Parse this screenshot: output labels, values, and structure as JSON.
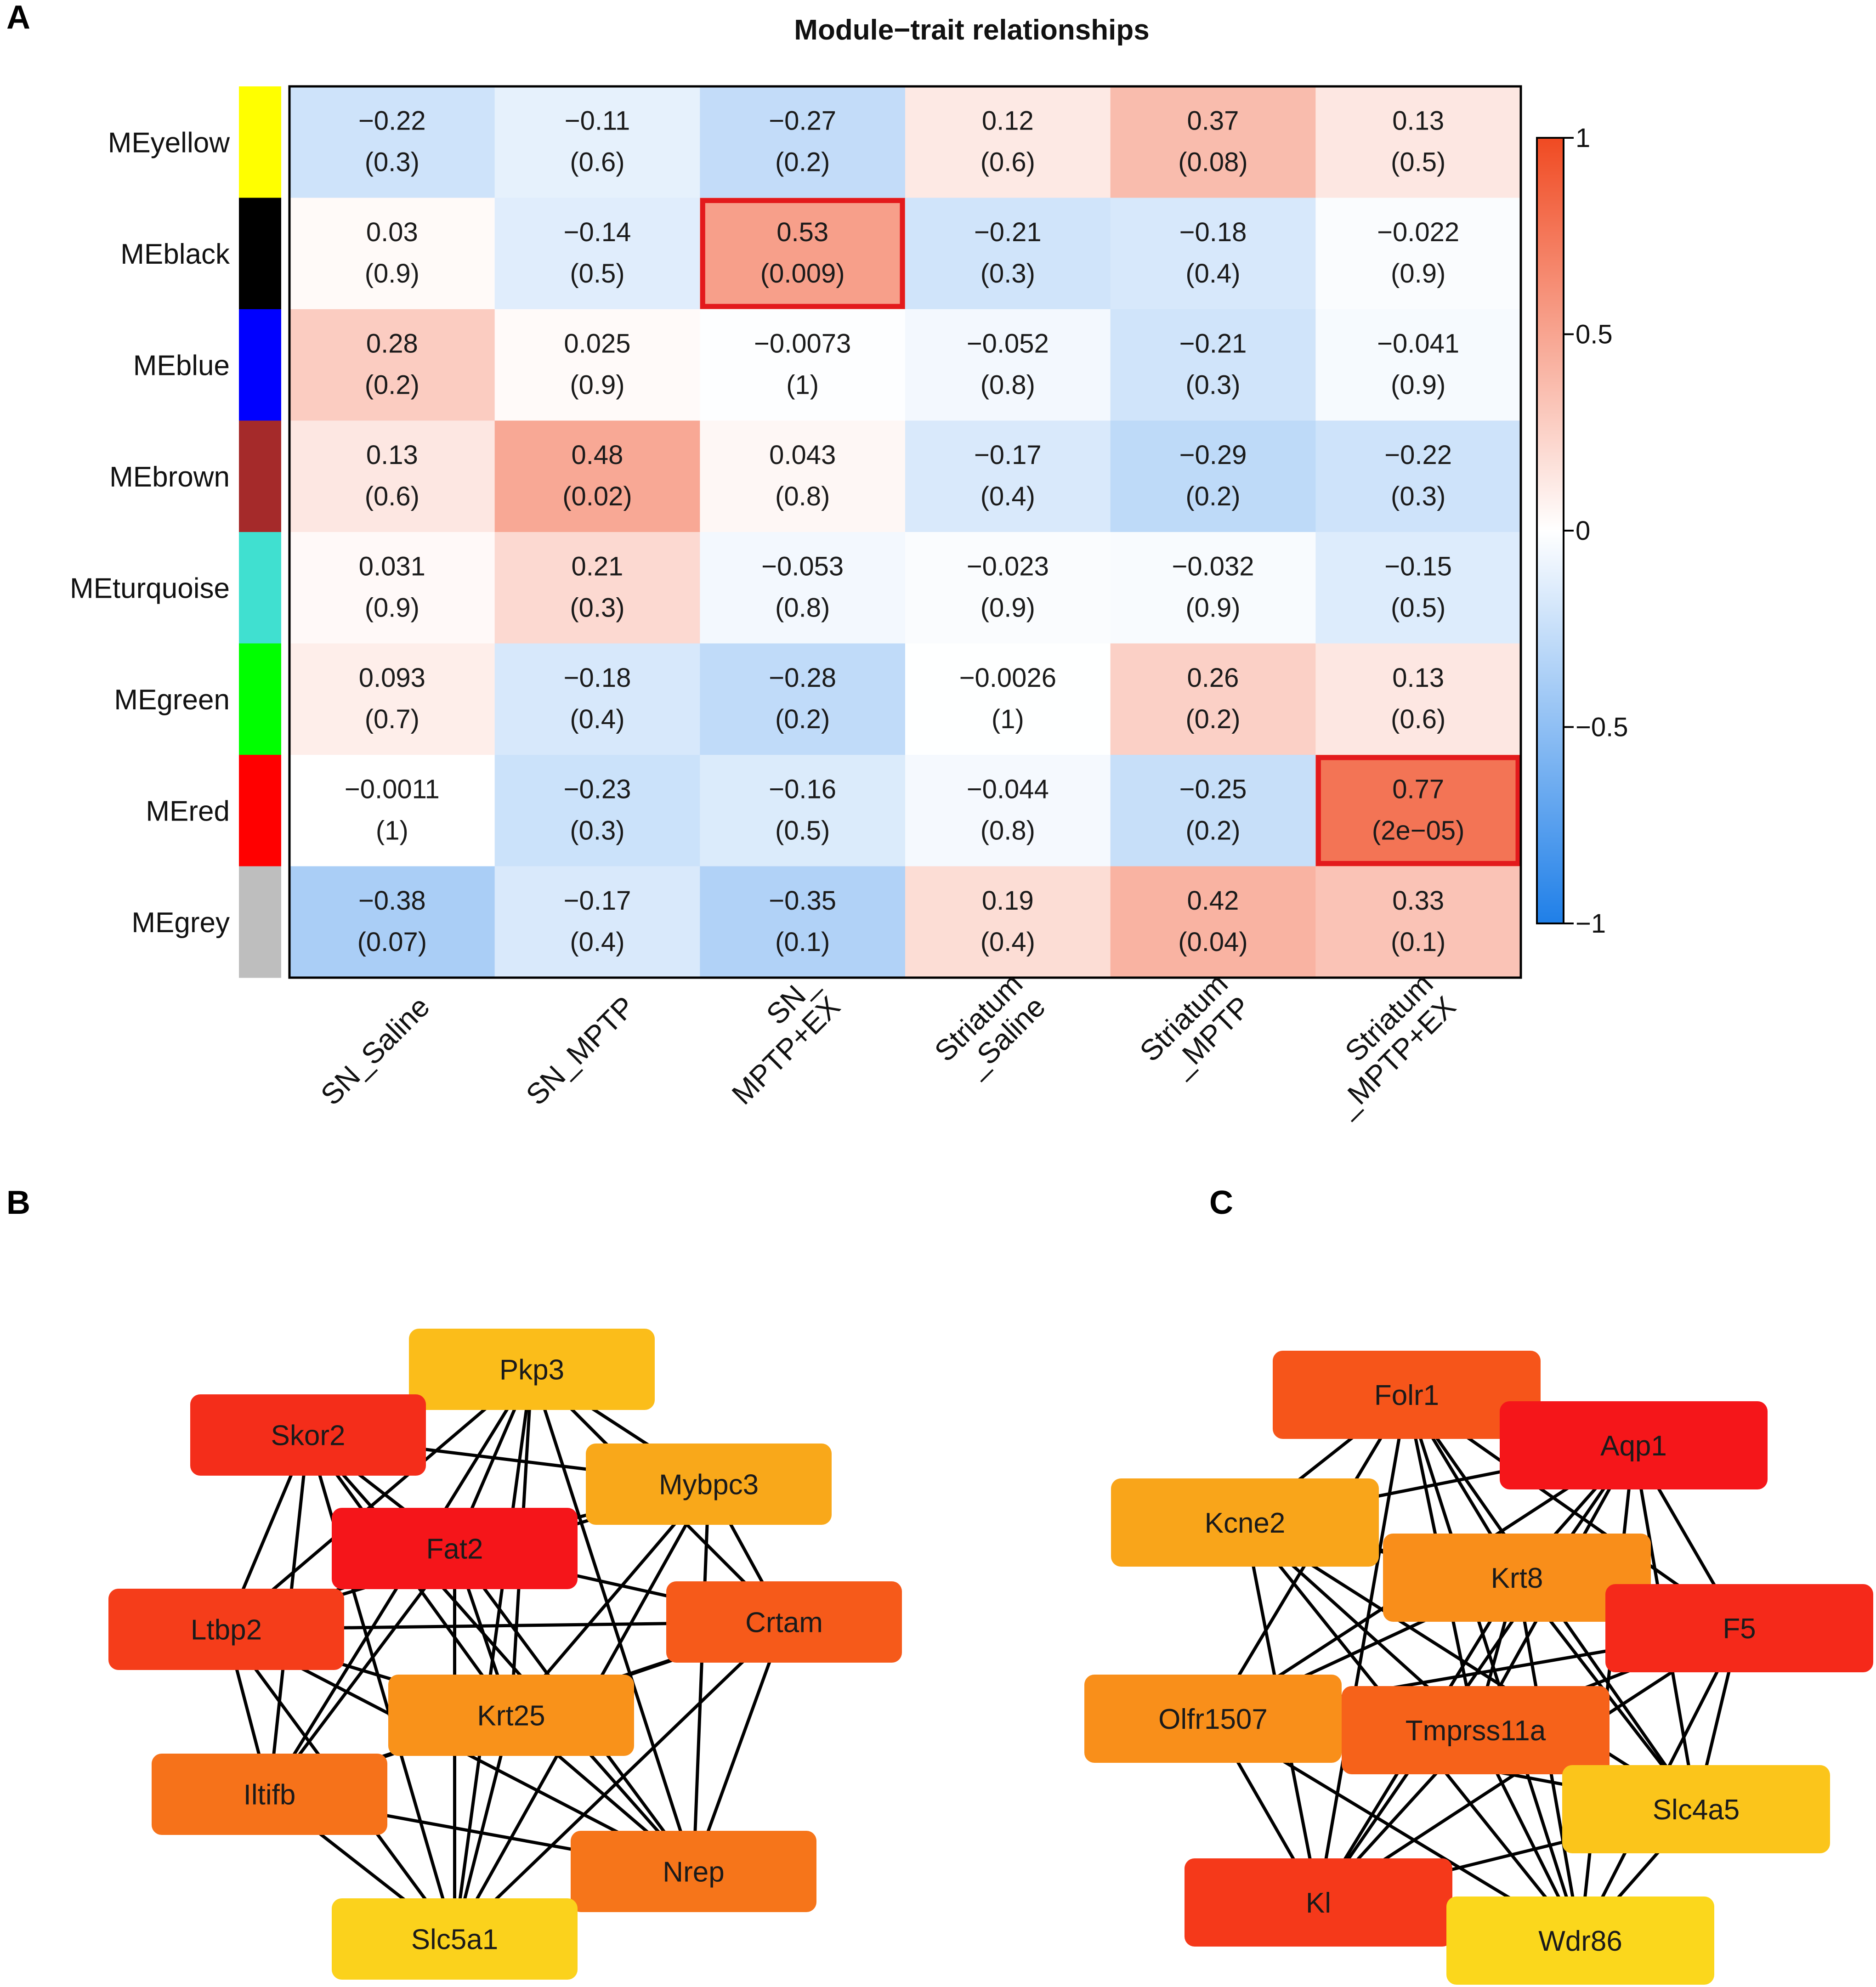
{
  "panels": {
    "a": "A",
    "b": "B",
    "c": "C"
  },
  "chart_data": [
    {
      "type": "heatmap",
      "title": "Module−trait relationships",
      "rows": [
        "MEyellow",
        "MEblack",
        "MEblue",
        "MEbrown",
        "MEturquoise",
        "MEgreen",
        "MEred",
        "MEgrey"
      ],
      "row_colors": [
        "#ffff00",
        "#000000",
        "#0000ff",
        "#a52a2a",
        "#40e0d0",
        "#00ff00",
        "#ff0000",
        "#bebebe"
      ],
      "columns": [
        [
          "SN_Saline"
        ],
        [
          "SN_MPTP"
        ],
        [
          "SN_",
          "MPTP+EX"
        ],
        [
          "Striatum",
          "_Saline"
        ],
        [
          "Striatum",
          "_MPTP"
        ],
        [
          "Striatum",
          "_MPTP+EX"
        ]
      ],
      "values": [
        [
          -0.22,
          -0.11,
          -0.27,
          0.12,
          0.37,
          0.13
        ],
        [
          0.03,
          -0.14,
          0.53,
          -0.21,
          -0.18,
          -0.022
        ],
        [
          0.28,
          0.025,
          -0.0073,
          -0.052,
          -0.21,
          -0.041
        ],
        [
          0.13,
          0.48,
          0.043,
          -0.17,
          -0.29,
          -0.22
        ],
        [
          0.031,
          0.21,
          -0.053,
          -0.023,
          -0.032,
          -0.15
        ],
        [
          0.093,
          -0.18,
          -0.28,
          -0.0026,
          0.26,
          0.13
        ],
        [
          -0.0011,
          -0.23,
          -0.16,
          -0.044,
          -0.25,
          0.77
        ],
        [
          -0.38,
          -0.17,
          -0.35,
          0.19,
          0.42,
          0.33
        ]
      ],
      "value_labels": [
        [
          "−0.22",
          "−0.11",
          "−0.27",
          "0.12",
          "0.37",
          "0.13"
        ],
        [
          "0.03",
          "−0.14",
          "0.53",
          "−0.21",
          "−0.18",
          "−0.022"
        ],
        [
          "0.28",
          "0.025",
          "−0.0073",
          "−0.052",
          "−0.21",
          "−0.041"
        ],
        [
          "0.13",
          "0.48",
          "0.043",
          "−0.17",
          "−0.29",
          "−0.22"
        ],
        [
          "0.031",
          "0.21",
          "−0.053",
          "−0.023",
          "−0.032",
          "−0.15"
        ],
        [
          "0.093",
          "−0.18",
          "−0.28",
          "−0.0026",
          "0.26",
          "0.13"
        ],
        [
          "−0.0011",
          "−0.23",
          "−0.16",
          "−0.044",
          "−0.25",
          "0.77"
        ],
        [
          "−0.38",
          "−0.17",
          "−0.35",
          "0.19",
          "0.42",
          "0.33"
        ]
      ],
      "pvalues": [
        [
          "(0.3)",
          "(0.6)",
          "(0.2)",
          "(0.6)",
          "(0.08)",
          "(0.5)"
        ],
        [
          "(0.9)",
          "(0.5)",
          "(0.009)",
          "(0.3)",
          "(0.4)",
          "(0.9)"
        ],
        [
          "(0.2)",
          "(0.9)",
          "(1)",
          "(0.8)",
          "(0.3)",
          "(0.9)"
        ],
        [
          "(0.6)",
          "(0.02)",
          "(0.8)",
          "(0.4)",
          "(0.2)",
          "(0.3)"
        ],
        [
          "(0.9)",
          "(0.3)",
          "(0.8)",
          "(0.9)",
          "(0.9)",
          "(0.5)"
        ],
        [
          "(0.7)",
          "(0.4)",
          "(0.2)",
          "(1)",
          "(0.2)",
          "(0.6)"
        ],
        [
          "(1)",
          "(0.3)",
          "(0.5)",
          "(0.8)",
          "(0.2)",
          "(2e−05)"
        ],
        [
          "(0.07)",
          "(0.4)",
          "(0.1)",
          "(0.4)",
          "(0.04)",
          "(0.1)"
        ]
      ],
      "highlighted": [
        [
          1,
          2
        ],
        [
          6,
          5
        ]
      ],
      "highlight_color": "#e31a1c",
      "colorscale": {
        "min": -1,
        "max": 1,
        "low": "#1f7fe8",
        "mid": "#ffffff",
        "high": "#f04a22"
      },
      "colorbar_ticks": [
        "1",
        "0.5",
        "0",
        "−0.5",
        "−1"
      ]
    },
    {
      "type": "network",
      "nodes": [
        {
          "name": "Pkp3",
          "color": "#fbbd1a"
        },
        {
          "name": "Skor2",
          "color": "#f42d1a"
        },
        {
          "name": "Mybpc3",
          "color": "#f9a81a"
        },
        {
          "name": "Fat2",
          "color": "#f5151a"
        },
        {
          "name": "Ltbp2",
          "color": "#f53d1a"
        },
        {
          "name": "Crtam",
          "color": "#f65a1a"
        },
        {
          "name": "Krt25",
          "color": "#f9921a"
        },
        {
          "name": "Iltifb",
          "color": "#f6721a"
        },
        {
          "name": "Nrep",
          "color": "#f6751a"
        },
        {
          "name": "Slc5a1",
          "color": "#fbd21c"
        }
      ],
      "edges": [
        [
          0,
          1
        ],
        [
          0,
          2
        ],
        [
          0,
          3
        ],
        [
          0,
          4
        ],
        [
          0,
          5
        ],
        [
          0,
          6
        ],
        [
          0,
          7
        ],
        [
          0,
          8
        ],
        [
          0,
          9
        ],
        [
          1,
          2
        ],
        [
          1,
          3
        ],
        [
          1,
          4
        ],
        [
          1,
          6
        ],
        [
          1,
          7
        ],
        [
          1,
          8
        ],
        [
          1,
          9
        ],
        [
          2,
          3
        ],
        [
          2,
          4
        ],
        [
          2,
          5
        ],
        [
          2,
          6
        ],
        [
          2,
          8
        ],
        [
          2,
          9
        ],
        [
          3,
          4
        ],
        [
          3,
          5
        ],
        [
          3,
          6
        ],
        [
          3,
          7
        ],
        [
          3,
          8
        ],
        [
          3,
          9
        ],
        [
          4,
          5
        ],
        [
          4,
          6
        ],
        [
          4,
          7
        ],
        [
          4,
          8
        ],
        [
          4,
          9
        ],
        [
          5,
          6
        ],
        [
          5,
          7
        ],
        [
          5,
          8
        ],
        [
          5,
          9
        ],
        [
          6,
          7
        ],
        [
          6,
          8
        ],
        [
          6,
          9
        ],
        [
          7,
          8
        ],
        [
          7,
          9
        ],
        [
          8,
          9
        ]
      ]
    },
    {
      "type": "network",
      "nodes": [
        {
          "name": "Folr1",
          "color": "#f6551a"
        },
        {
          "name": "Aqp1",
          "color": "#f5161a"
        },
        {
          "name": "Kcne2",
          "color": "#f9a51a"
        },
        {
          "name": "Krt8",
          "color": "#f98e1a"
        },
        {
          "name": "F5",
          "color": "#f5291a"
        },
        {
          "name": "Olfr1507",
          "color": "#f98f1a"
        },
        {
          "name": "Tmprss11a",
          "color": "#f6621a"
        },
        {
          "name": "Slc4a5",
          "color": "#fbc51b"
        },
        {
          "name": "Kl",
          "color": "#f5391a"
        },
        {
          "name": "Wdr86",
          "color": "#fbd71c"
        }
      ],
      "edges": [
        [
          0,
          1
        ],
        [
          0,
          2
        ],
        [
          0,
          3
        ],
        [
          0,
          4
        ],
        [
          0,
          5
        ],
        [
          0,
          6
        ],
        [
          0,
          7
        ],
        [
          0,
          8
        ],
        [
          0,
          9
        ],
        [
          1,
          2
        ],
        [
          1,
          3
        ],
        [
          1,
          4
        ],
        [
          1,
          5
        ],
        [
          1,
          6
        ],
        [
          1,
          7
        ],
        [
          1,
          8
        ],
        [
          1,
          9
        ],
        [
          2,
          3
        ],
        [
          2,
          4
        ],
        [
          2,
          6
        ],
        [
          2,
          7
        ],
        [
          2,
          8
        ],
        [
          2,
          9
        ],
        [
          3,
          4
        ],
        [
          3,
          5
        ],
        [
          3,
          6
        ],
        [
          3,
          7
        ],
        [
          3,
          8
        ],
        [
          3,
          9
        ],
        [
          4,
          5
        ],
        [
          4,
          6
        ],
        [
          4,
          7
        ],
        [
          4,
          8
        ],
        [
          4,
          9
        ],
        [
          5,
          6
        ],
        [
          5,
          7
        ],
        [
          5,
          8
        ],
        [
          5,
          9
        ],
        [
          6,
          7
        ],
        [
          6,
          8
        ],
        [
          6,
          9
        ],
        [
          7,
          8
        ],
        [
          7,
          9
        ],
        [
          8,
          9
        ]
      ]
    }
  ]
}
